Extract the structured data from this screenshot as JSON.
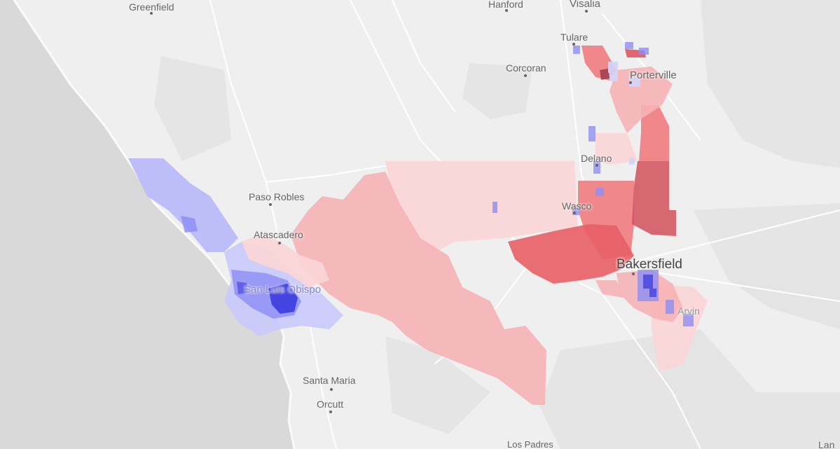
{
  "map": {
    "colors": {
      "ocean": "#d9d9d9",
      "land": "#efefef",
      "road": "#ffffff",
      "dem_dark": "#3b3bdf",
      "dem_mid": "#8f8ff5",
      "dem_light": "#c9c9fb",
      "rep_dark": "#d0505a",
      "rep_mid": "#ef7c80",
      "rep_light": "#f6b3b5",
      "rep_pale": "#fad5d6"
    },
    "places": [
      {
        "name": "Greenfield"
      },
      {
        "name": "Hanford"
      },
      {
        "name": "Visalia"
      },
      {
        "name": "Tulare"
      },
      {
        "name": "Corcoran"
      },
      {
        "name": "Porterville"
      },
      {
        "name": "Delano"
      },
      {
        "name": "Paso Robles"
      },
      {
        "name": "Wasco"
      },
      {
        "name": "Atascadero"
      },
      {
        "name": "Bakersfield"
      },
      {
        "name": "San Luis Obispo"
      },
      {
        "name": "Arvin"
      },
      {
        "name": "Santa Maria"
      },
      {
        "name": "Orcutt"
      },
      {
        "name": "Los Padres"
      },
      {
        "name": "Lan"
      }
    ]
  }
}
